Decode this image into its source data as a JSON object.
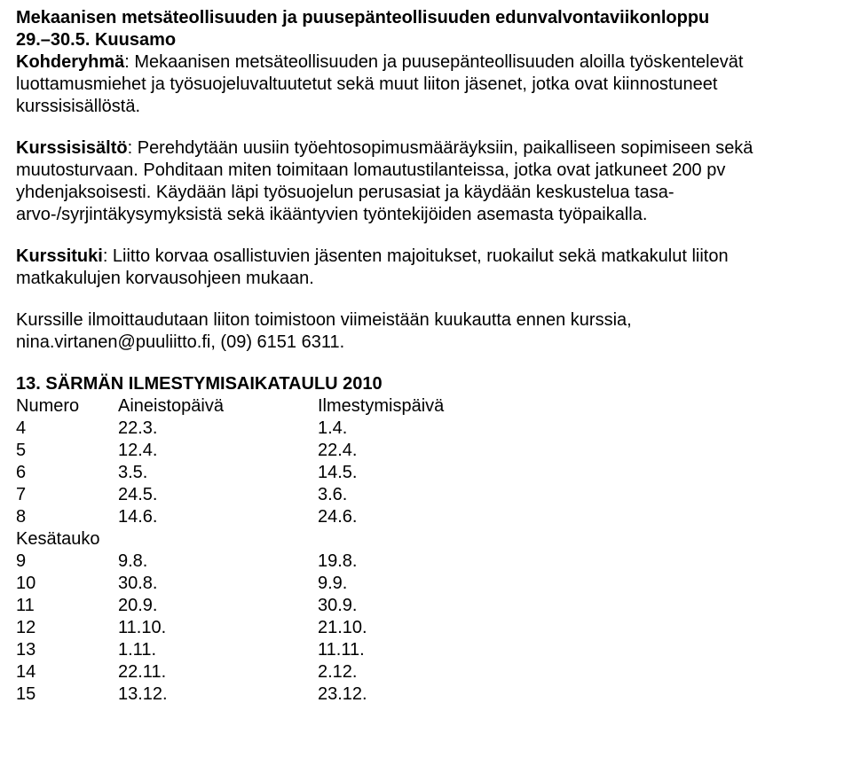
{
  "title_line1": "Mekaanisen metsäteollisuuden ja puusepänteollisuuden edunvalvontaviikonloppu",
  "title_line2": "29.–30.5. Kuusamo",
  "kohderyhma_label": "Kohderyhmä",
  "kohderyhma_text": ": Mekaanisen metsäteollisuuden ja puusepänteollisuuden aloilla työskentelevät luottamusmiehet ja työsuojeluvaltuutetut sekä muut liiton jäsenet, jotka ovat kiinnostuneet kurssisisällöstä.",
  "kurssisisalto_label": "Kurssisisältö",
  "kurssisisalto_text": ": Perehdytään uusiin työehtosopimusmääräyksiin, paikalliseen sopimiseen sekä muutosturvaan. Pohditaan miten toimitaan lomautustilanteissa, jotka ovat jatkuneet 200 pv yhdenjaksoisesti. Käydään läpi työsuojelun perusasiat ja käydään keskustelua tasa-arvo-/syrjintäkysymyksistä sekä ikääntyvien työntekijöiden asemasta työpaikalla.",
  "kurssituki_label": "Kurssituki",
  "kurssituki_text": ": Liitto korvaa osallistuvien jäsenten majoitukset, ruokailut sekä matkakulut liiton matkakulujen korvausohjeen mukaan.",
  "ilmo_text": "Kurssille ilmoittaudutaan liiton toimistoon viimeistään kuukautta ennen kurssia, nina.virtanen@puuliitto.fi, (09) 6151 6311.",
  "sect_title": "13. SÄRMÄN ILMESTYMISAIKATAULU 2010",
  "table_headers": {
    "numero": "Numero",
    "aineisto": "Aineistopäivä",
    "ilmestymis": "Ilmestymispäivä"
  },
  "rows": [
    {
      "n": "4",
      "a": "22.3.",
      "i": "1.4."
    },
    {
      "n": "5",
      "a": "12.4.",
      "i": "22.4."
    },
    {
      "n": "6",
      "a": "3.5.",
      "i": "14.5."
    },
    {
      "n": "7",
      "a": "24.5.",
      "i": "3.6."
    },
    {
      "n": "8",
      "a": "14.6.",
      "i": "24.6."
    }
  ],
  "break_label": "Kesätauko",
  "rows2": [
    {
      "n": "9",
      "a": "9.8.",
      "i": "19.8."
    },
    {
      "n": "10",
      "a": "30.8.",
      "i": "9.9."
    },
    {
      "n": "11",
      "a": "20.9.",
      "i": "30.9."
    },
    {
      "n": "12",
      "a": "11.10.",
      "i": "21.10."
    },
    {
      "n": "13",
      "a": "1.11.",
      "i": "11.11."
    },
    {
      "n": "14",
      "a": "22.11.",
      "i": "2.12."
    },
    {
      "n": "15",
      "a": "13.12.",
      "i": "23.12."
    }
  ]
}
